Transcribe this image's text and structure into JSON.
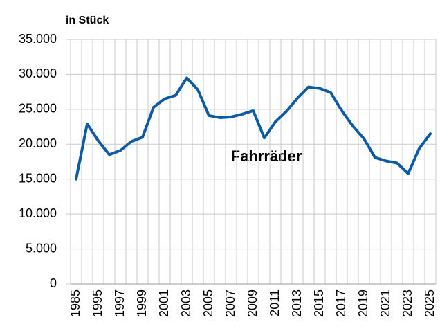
{
  "chart_data": {
    "type": "line",
    "y_label": "in Stück",
    "categories": [
      "1985",
      null,
      "1995",
      null,
      "1997",
      null,
      "1999",
      null,
      "2001",
      null,
      "2003",
      null,
      "2005",
      null,
      "2007",
      null,
      "2009",
      null,
      "2011",
      null,
      "2013",
      null,
      "2015",
      null,
      "2017",
      null,
      "2019",
      null,
      "2021",
      null,
      "2023",
      null,
      "2025"
    ],
    "series": [
      {
        "name": "Fahrräder",
        "color": "#0b5ba6",
        "values": [
          15000,
          22900,
          20500,
          18500,
          19100,
          20400,
          21000,
          25300,
          26500,
          27000,
          29500,
          27800,
          24100,
          23800,
          23900,
          24300,
          24800,
          20900,
          23200,
          24700,
          26600,
          28200,
          28000,
          27400,
          24800,
          22600,
          20800,
          18100,
          17600,
          17300,
          15800,
          19400,
          21500
        ]
      }
    ],
    "ylim": [
      0,
      35000
    ],
    "yticks": [
      0,
      {
        "value": 5000,
        "label": "5.000"
      },
      {
        "value": 10000,
        "label": "10.000"
      },
      {
        "value": 15000,
        "label": "15.000"
      },
      {
        "value": 20000,
        "label": "20.000"
      },
      {
        "value": 25000,
        "label": "25.000"
      },
      {
        "value": 30000,
        "label": "30.000"
      },
      {
        "value": 35000,
        "label": "35.000"
      }
    ],
    "grid": true
  }
}
